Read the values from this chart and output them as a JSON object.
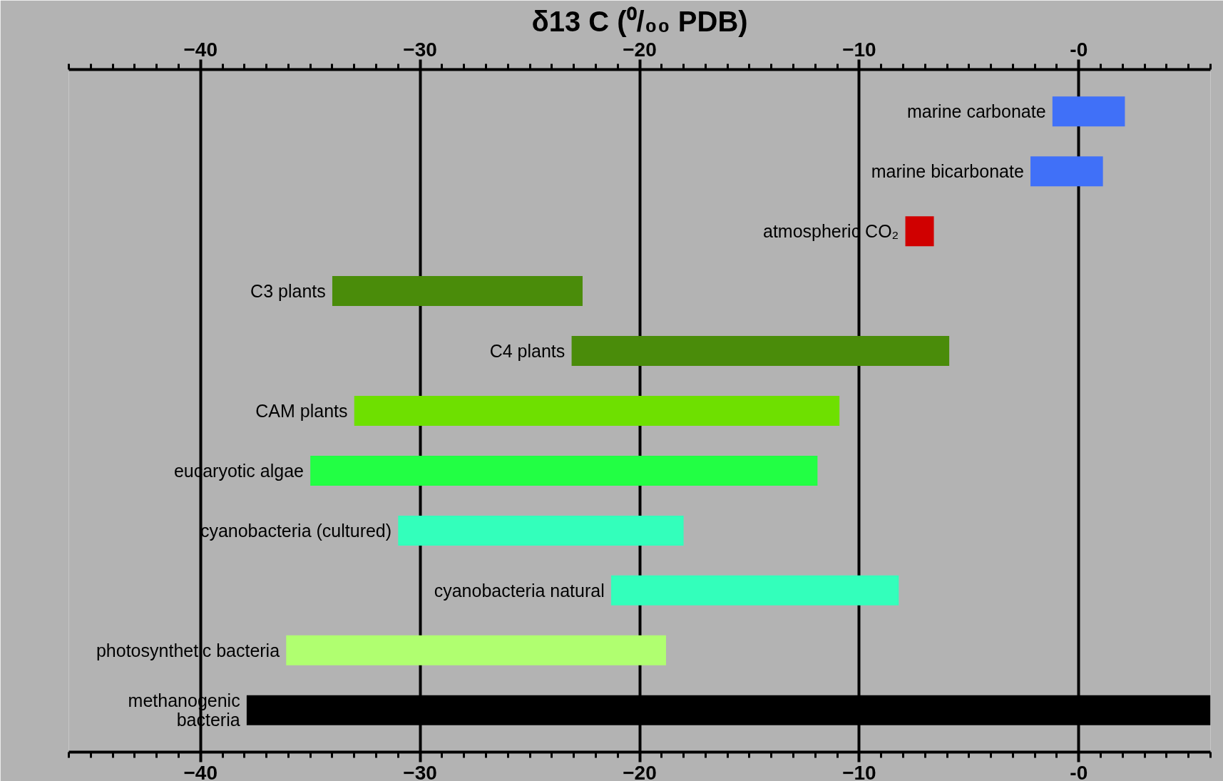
{
  "chart_data": {
    "type": "bar",
    "orientation": "horizontal",
    "title": "δ13 C (⁰/₀₀ PDB)",
    "categories": [
      "marine carbonate",
      "marine bicarbonate",
      "atmospheric CO₂",
      "C3 plants",
      "C4 plants",
      "CAM plants",
      "eucaryotic algae",
      "cyanobacteria (cultured)",
      "cyanobacteria natural",
      "photosynthetic bacteria",
      "methanogenic\nbacteria"
    ],
    "base": [
      -1.2,
      -2.2,
      -7.9,
      -34,
      -23.1,
      -33,
      -35,
      -31,
      -21.3,
      -36.1,
      -37.9
    ],
    "values": [
      3.3,
      3.3,
      1.3,
      11.4,
      17.2,
      22.1,
      23.1,
      13,
      13.1,
      17.3,
      43.9
    ],
    "colors": [
      "#4070f8",
      "#4070f8",
      "#d00000",
      "#4a8c0a",
      "#4a8c0a",
      "#6ee000",
      "#22ff44",
      "#33ffbb",
      "#33ffbb",
      "#b0ff70",
      "#000000"
    ],
    "xlim": [
      -46,
      6
    ],
    "xticks": [
      -40,
      -30,
      -20,
      -10,
      {
        "value": 0,
        "label": "-0"
      }
    ],
    "x2lim": [
      -46,
      6
    ],
    "x2ticks": [
      -40,
      -30,
      -20,
      -10,
      {
        "value": 0,
        "label": "-0"
      }
    ],
    "grid": "x"
  }
}
